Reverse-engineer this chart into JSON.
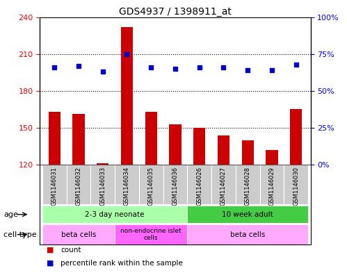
{
  "title": "GDS4937 / 1398911_at",
  "samples": [
    "GSM1146031",
    "GSM1146032",
    "GSM1146033",
    "GSM1146034",
    "GSM1146035",
    "GSM1146036",
    "GSM1146026",
    "GSM1146027",
    "GSM1146028",
    "GSM1146029",
    "GSM1146030"
  ],
  "counts": [
    163,
    161,
    121,
    232,
    163,
    153,
    150,
    144,
    140,
    132,
    165
  ],
  "percentiles": [
    66,
    67,
    63,
    75,
    66,
    65,
    66,
    66,
    64,
    64,
    68
  ],
  "ylim_left": [
    120,
    240
  ],
  "ylim_right": [
    0,
    100
  ],
  "yticks_left": [
    120,
    150,
    180,
    210,
    240
  ],
  "yticks_right": [
    0,
    25,
    50,
    75,
    100
  ],
  "bar_color": "#CC0000",
  "dot_color": "#0000CC",
  "bg_color": "#FFFFFF",
  "tick_label_bg": "#CCCCCC",
  "age_neonate_color": "#AAFFAA",
  "age_adult_color": "#44CC44",
  "cell_beta_color": "#FFAAFF",
  "cell_nonendo_color": "#FF66FF",
  "bar_width": 0.5,
  "hgrid_values": [
    150,
    180,
    210
  ],
  "neonate_count": 6,
  "beta1_count": 3,
  "nonendo_count": 3,
  "adult_count": 5,
  "legend_count_label": "count",
  "legend_pct_label": "percentile rank within the sample",
  "age_label": "age",
  "cell_label": "cell type",
  "age_neonate_text": "2-3 day neonate",
  "age_adult_text": "10 week adult",
  "cell_beta1_text": "beta cells",
  "cell_nonendo_text": "non-endocrine islet\ncells",
  "cell_beta2_text": "beta cells"
}
